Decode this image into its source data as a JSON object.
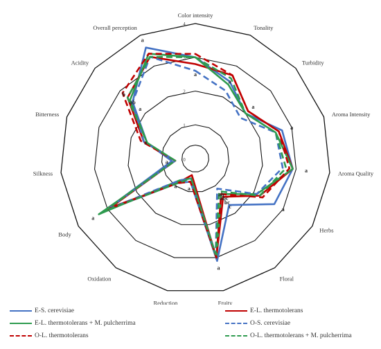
{
  "chart_data": {
    "type": "radar",
    "axes": [
      "Color intensity",
      "Tonality",
      "Turbidity",
      "Aroma Intensity",
      "Aroma Quality",
      "Herbs",
      "Floral",
      "Fruity",
      "Reduction",
      "Oxidation",
      "Body",
      "Silkness",
      "Bitterness",
      "Acidity",
      "Overall perception"
    ],
    "rlim": [
      0,
      4
    ],
    "ticks": [
      "0",
      "1",
      "2",
      "3",
      "4"
    ],
    "series": [
      {
        "name": "E-S. cerevisiae",
        "color": "#4472C4",
        "dash": "solid",
        "values": [
          3.0,
          2.5,
          2.0,
          2.7,
          2.9,
          2.7,
          1.7,
          3.1,
          0.7,
          0.9,
          3.1,
          0.7,
          1.5,
          2.5,
          3.6
        ]
      },
      {
        "name": "E-L. thermotolerans",
        "color": "#C00000",
        "dash": "solid",
        "values": [
          2.8,
          2.7,
          2.1,
          2.6,
          2.9,
          2.2,
          1.4,
          3.0,
          0.5,
          0.9,
          2.9,
          0.6,
          1.6,
          2.7,
          3.3
        ]
      },
      {
        "name": "E-L. thermotolerans + M. pulcherrima",
        "color": "#2E9B4F",
        "dash": "solid",
        "values": [
          3.0,
          2.4,
          2.0,
          2.5,
          2.9,
          2.1,
          1.3,
          3.0,
          0.6,
          0.8,
          3.3,
          0.6,
          1.5,
          2.6,
          3.4
        ]
      },
      {
        "name": "O-S. cerevisiae",
        "color": "#4472C4",
        "dash": "dashed",
        "values": [
          2.6,
          2.2,
          1.8,
          2.5,
          2.6,
          2.1,
          1.1,
          2.9,
          0.6,
          0.8,
          3.0,
          0.6,
          1.6,
          2.5,
          3.3
        ]
      },
      {
        "name": "O-L. thermotolerans",
        "color": "#C00000",
        "dash": "dashed",
        "values": [
          3.1,
          2.7,
          2.1,
          2.6,
          2.8,
          2.3,
          1.3,
          3.0,
          0.7,
          0.9,
          3.0,
          0.6,
          1.7,
          2.9,
          3.4
        ]
      },
      {
        "name": "O-L. thermotolerans + M. pulcherrima",
        "color": "#2E9B4F",
        "dash": "dashed",
        "values": [
          3.0,
          2.6,
          2.0,
          2.5,
          2.7,
          2.2,
          1.2,
          2.9,
          0.6,
          0.9,
          3.1,
          0.6,
          1.5,
          2.7,
          3.3
        ]
      }
    ],
    "significance_labels": [
      {
        "axis": "Color intensity",
        "r": 2.5,
        "text": "a"
      },
      {
        "axis": "Tonality",
        "r": 2.5,
        "text": "a"
      },
      {
        "axis": "Turbidity",
        "r": 2.3,
        "text": "a"
      },
      {
        "axis": "Aroma Intensity",
        "r": 3.0,
        "text": "a"
      },
      {
        "axis": "Aroma Quality",
        "r": 3.3,
        "text": "a"
      },
      {
        "axis": "Herbs",
        "r": 3.0,
        "text": "a"
      },
      {
        "axis": "Floral",
        "r": 1.3,
        "text": "ab"
      },
      {
        "axis": "Floral",
        "r": 1.45,
        "text": "abc"
      },
      {
        "axis": "Floral",
        "r": 1.6,
        "text": "bc"
      },
      {
        "axis": "Floral",
        "r": 1.75,
        "text": "c"
      },
      {
        "axis": "Fruity",
        "r": 3.3,
        "text": "a"
      },
      {
        "axis": "Reduction",
        "r": 0.9,
        "text": "a"
      },
      {
        "axis": "Oxidation",
        "r": 1.0,
        "text": "a"
      },
      {
        "axis": "Body",
        "r": 3.5,
        "text": "a"
      },
      {
        "axis": "Silkness",
        "r": 0.85,
        "text": "a"
      },
      {
        "axis": "Bitterness",
        "r": 1.55,
        "text": "a"
      },
      {
        "axis": "Acidity",
        "r": 2.2,
        "text": "a"
      },
      {
        "axis": "Acidity",
        "r": 2.5,
        "text": "ab"
      },
      {
        "axis": "Acidity",
        "r": 2.85,
        "text": "b"
      },
      {
        "axis": "Overall perception",
        "r": 3.85,
        "text": "a"
      }
    ],
    "legend_position": "bottom"
  }
}
